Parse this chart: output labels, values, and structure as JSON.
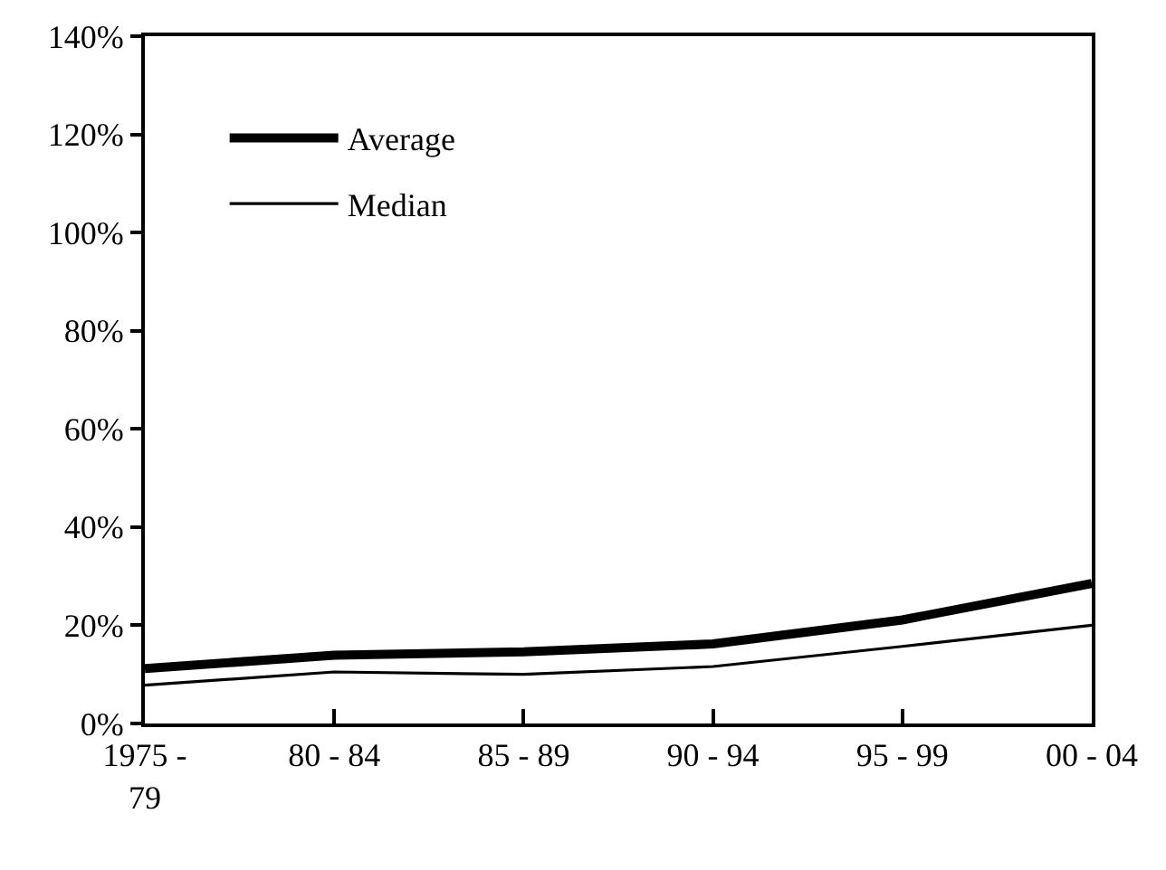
{
  "chart_data": {
    "type": "line",
    "categories": [
      "1975 - 79",
      "80 - 84",
      "85 - 89",
      "90 - 94",
      "95 - 99",
      "00 - 04"
    ],
    "series": [
      {
        "name": "Average",
        "color": "#000000",
        "values": [
          11.2,
          13.9,
          14.6,
          16.2,
          21.1,
          28.5
        ]
      },
      {
        "name": "Median",
        "color": "#000000",
        "values": [
          7.8,
          10.5,
          10.0,
          11.6,
          15.7,
          20.0
        ]
      }
    ],
    "ylim": [
      0,
      140
    ],
    "yticks": [
      {
        "value": 0,
        "label": "0%"
      },
      {
        "value": 20,
        "label": "20%"
      },
      {
        "value": 40,
        "label": "40%"
      },
      {
        "value": 60,
        "label": "60%"
      },
      {
        "value": 80,
        "label": "80%"
      },
      {
        "value": 100,
        "label": "100%"
      },
      {
        "value": 120,
        "label": "120%"
      },
      {
        "value": 140,
        "label": "140%"
      }
    ],
    "grid": false,
    "legend": "top left",
    "marker": "none",
    "line_style": "solid"
  }
}
